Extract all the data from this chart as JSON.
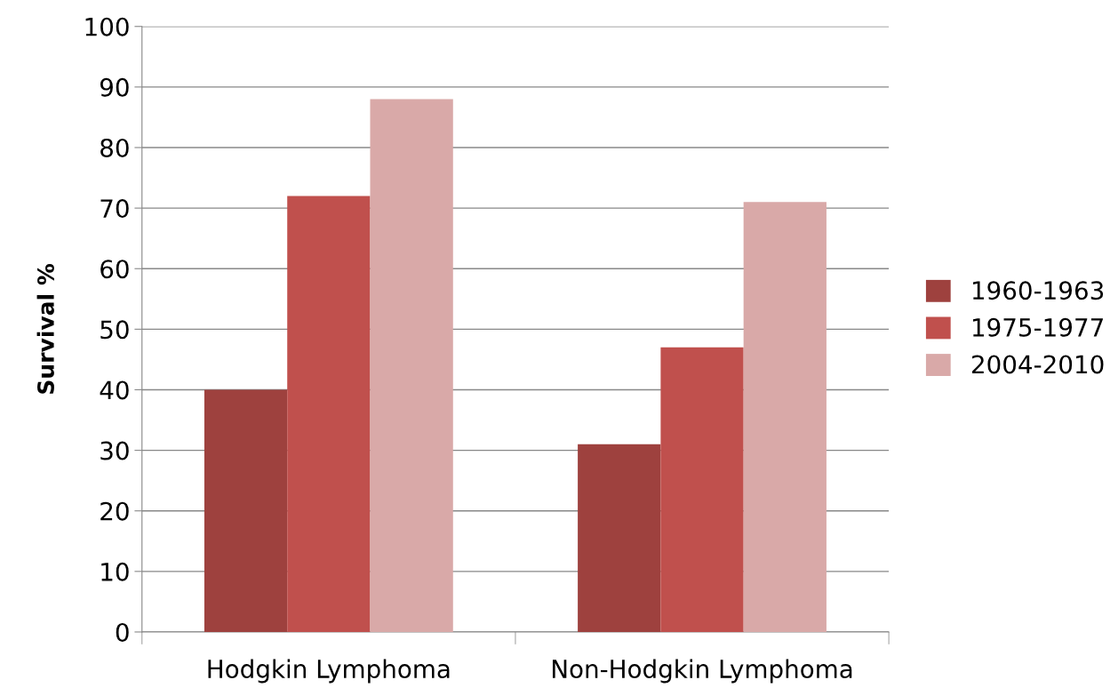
{
  "chart_data": {
    "type": "bar",
    "ylabel": "Survival %",
    "categories": [
      "Hodgkin Lymphoma",
      "Non-Hodgkin Lymphoma"
    ],
    "series": [
      {
        "name": "1960-1963",
        "color": "#9e413e",
        "values": [
          40,
          31
        ]
      },
      {
        "name": "1975-1977",
        "color": "#c0504d",
        "values": [
          72,
          47
        ]
      },
      {
        "name": "2004-2010",
        "color": "#d9a9a8",
        "values": [
          88,
          71
        ]
      }
    ],
    "ylim": [
      0,
      100
    ],
    "yticks": [
      0,
      10,
      20,
      30,
      40,
      50,
      60,
      70,
      80,
      90,
      100
    ],
    "grid": "y",
    "legend": "right"
  }
}
